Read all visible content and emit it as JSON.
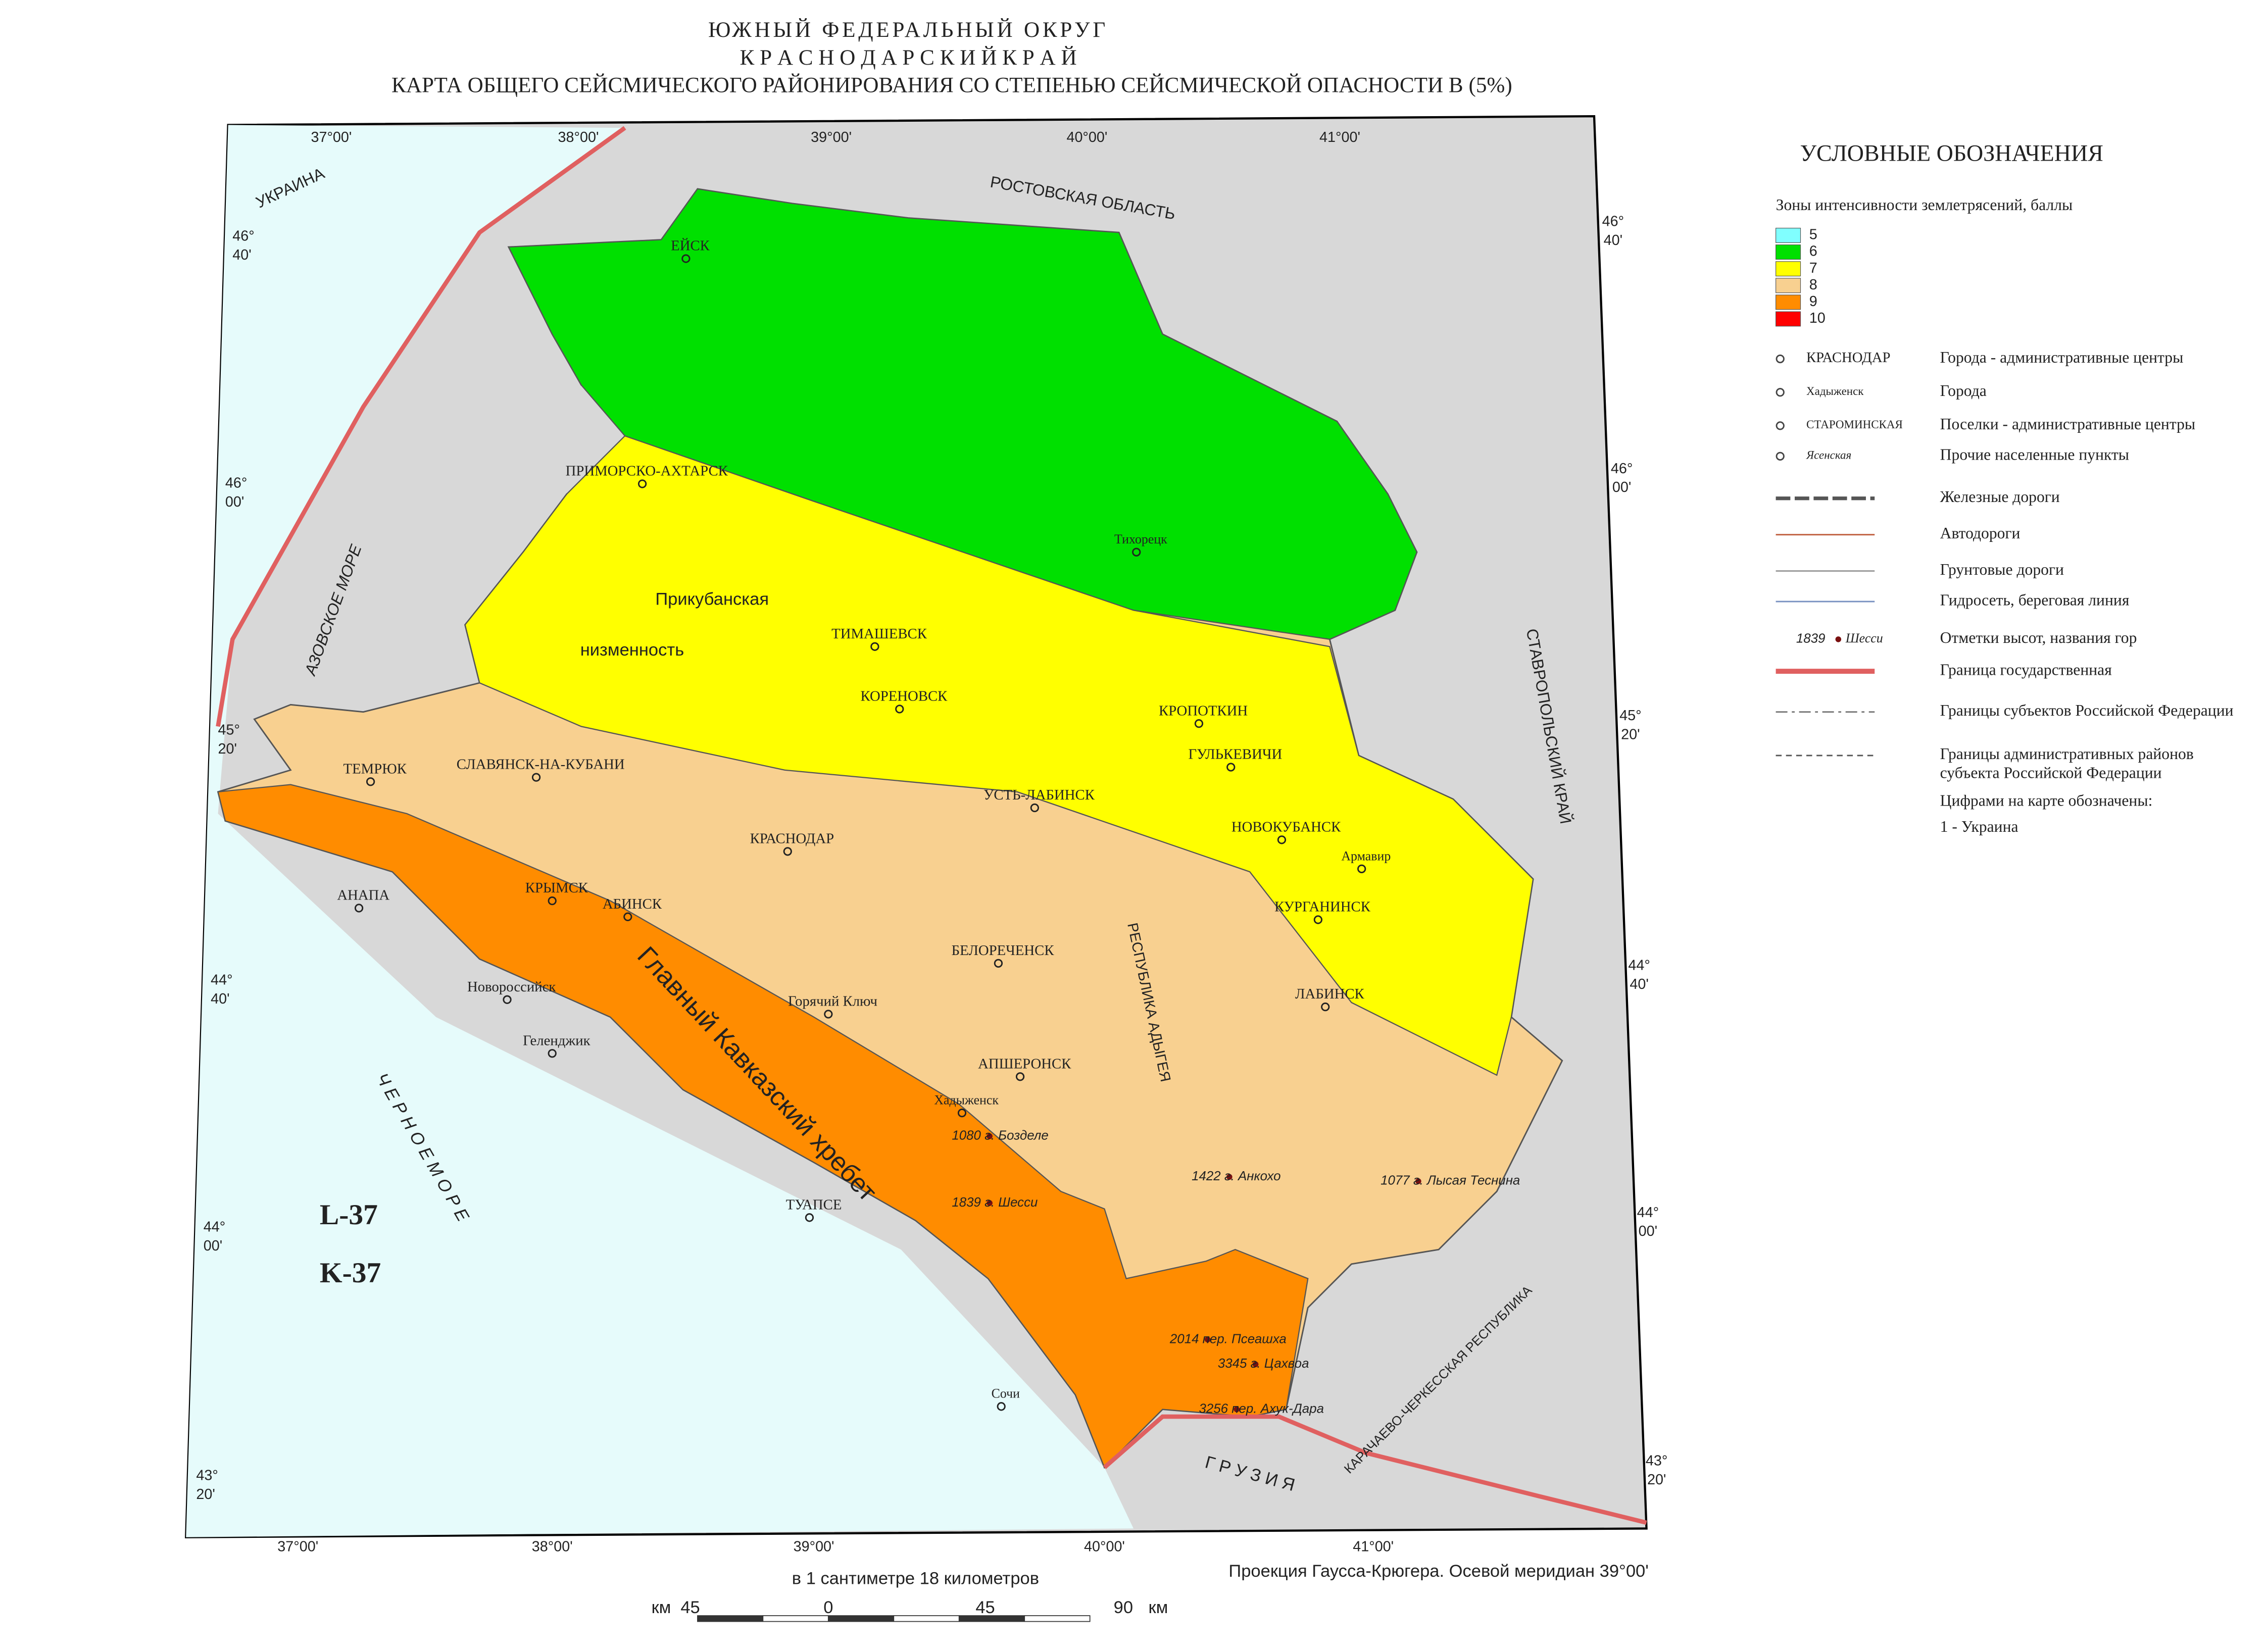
{
  "header": {
    "line1": "ЮЖНЫЙ ФЕДЕРАЛЬНЫЙ ОКРУГ",
    "line2": "К Р А С Н О Д А Р С К И Й   К Р А Й",
    "line3": "КАРТА ОБЩЕГО СЕЙСМИЧЕСКОГО РАЙОНИРОВАНИЯ СО СТЕПЕНЬЮ СЕЙСМИЧЕСКОЙ ОПАСНОСТИ В (5%)"
  },
  "legend": {
    "title": "УСЛОВНЫЕ ОБОЗНАЧЕНИЯ",
    "zones_title": "Зоны интенсивности землетрясений, баллы",
    "zones": [
      {
        "label": "5",
        "color": "#80ffff"
      },
      {
        "label": "6",
        "color": "#00e000"
      },
      {
        "label": "7",
        "color": "#ffff00"
      },
      {
        "label": "8",
        "color": "#f8d090"
      },
      {
        "label": "9",
        "color": "#ff8c00"
      },
      {
        "label": "10",
        "color": "#ff0000"
      }
    ],
    "items": [
      {
        "sample": "КРАСНОДАР",
        "label": "Города - административные центры"
      },
      {
        "sample": "Хадыженск",
        "label": "Города"
      },
      {
        "sample": "СТАРОМИНСКАЯ",
        "label": "Поселки - административные центры"
      },
      {
        "sample": "Ясенская",
        "label": "Прочие населенные пункты"
      },
      {
        "label": "Железные дороги"
      },
      {
        "label": "Автодороги"
      },
      {
        "label": "Грунтовые дороги"
      },
      {
        "label": "Гидросеть, береговая линия"
      },
      {
        "sample": "1839",
        "sample2": "Шесси",
        "label": "Отметки высот, названия гор"
      },
      {
        "label": "Граница государственная"
      },
      {
        "label": "Границы субъектов Российской Федерации"
      },
      {
        "label": "Границы административных районов",
        "label2": "субъекта Российской Федерации"
      }
    ],
    "note": "Цифрами на карте обозначены:",
    "note_item": "1  -  Украина"
  },
  "map": {
    "sheets": [
      "L-37",
      "K-37"
    ],
    "lon_labels": [
      "37°00'",
      "38°00'",
      "39°00'",
      "40°00'",
      "41°00'"
    ],
    "lat_labels": [
      {
        "deg": "46°",
        "min": "40'"
      },
      {
        "deg": "46°",
        "min": "00'"
      },
      {
        "deg": "45°",
        "min": "20'"
      },
      {
        "deg": "44°",
        "min": "40'"
      },
      {
        "deg": "44°",
        "min": "00'"
      },
      {
        "deg": "43°",
        "min": "20'"
      }
    ],
    "region_labels": [
      "УКРАИНА",
      "РОСТОВСКАЯ ОБЛАСТЬ",
      "СТАВРОПОЛЬСКИЙ КРАЙ",
      "Г Р У З И Я",
      "АЗОВСКОЕ МОРЕ",
      "Ч Е Р Н О Е   М О Р Е",
      "РЕСПУБЛИКА АДЫГЕЯ",
      "КАРАЧАЕВО-ЧЕРКЕССКАЯ РЕСПУБЛИКА",
      "Прикубанская",
      "низменность",
      "Главный Кавказский хребет"
    ],
    "places": [
      "ЕЙСК",
      "ПРИМОРСКО-АХТАРСК",
      "ТИМАШЕВСК",
      "КОРЕНОВСК",
      "КРОПОТКИН",
      "ГУЛЬКЕВИЧИ",
      "УСТЬ-ЛАБИНСК",
      "КРАСНОДАР",
      "НОВОКУБАНСК",
      "СЛАВЯНСК-НА-КУБАНИ",
      "ТЕМРЮК",
      "КРЫМСК",
      "АБИНСК",
      "АНАПА",
      "КУРГАНИНСК",
      "ЛАБИНСК",
      "БЕЛОРЕЧЕНСК",
      "АПШЕРОНСК",
      "Горячий Ключ",
      "Новороссийск",
      "Геленджик",
      "ТУАПСЕ",
      "Сочи",
      "Тихорецк",
      "Хадыженск",
      "Армавир"
    ],
    "peaks": [
      "1080 г. Бозделе",
      "1839 г. Шесси",
      "1422 г. Анкохо",
      "1077 г. Лысая Теснина",
      "2014 пер. Псеашха",
      "3345 г. Цахвоа",
      "3256 пер. Ахук-Дара"
    ]
  },
  "footer": {
    "scale_caption": "в 1 сантиметре 18 километров",
    "scale_labels": [
      "км",
      "45",
      "0",
      "45",
      "90",
      "км"
    ],
    "projection": "Проекция Гаусса-Крюгера. Осевой меридиан 39°00'"
  }
}
